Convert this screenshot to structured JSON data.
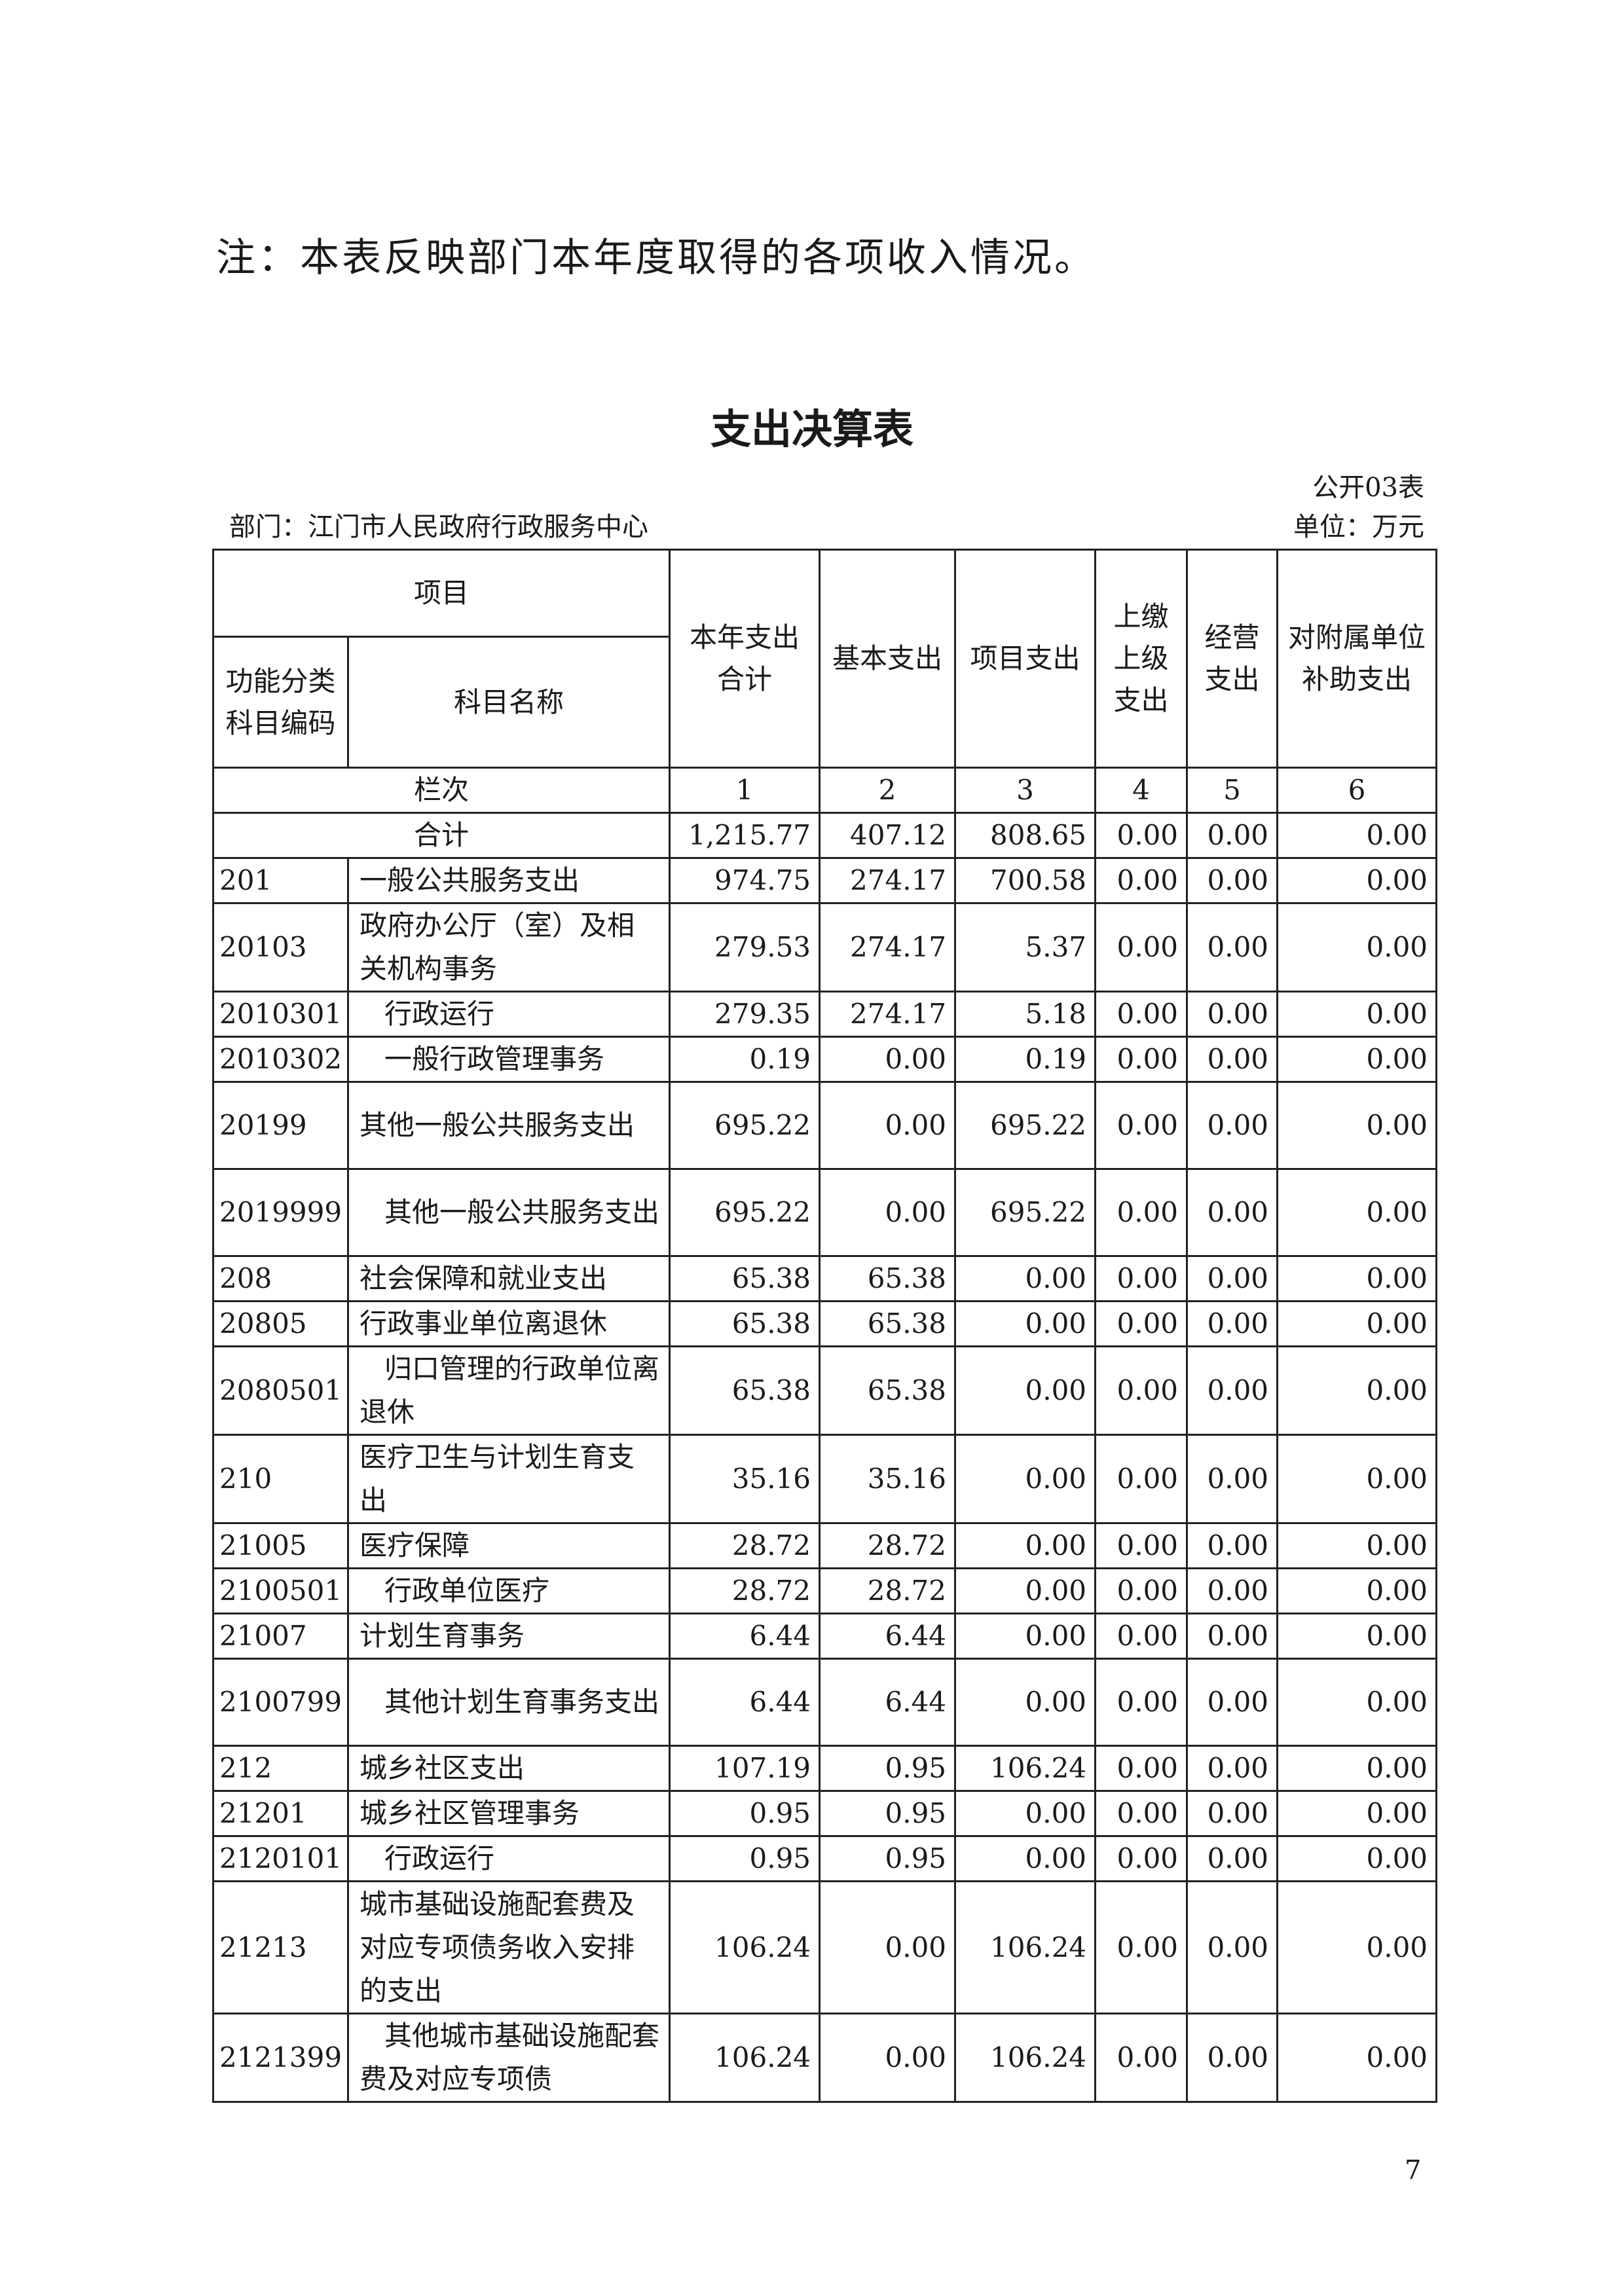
{
  "note": "注：本表反映部门本年度取得的各项收入情况。",
  "title": "支出决算表",
  "table_no": "公开03表",
  "department": "部门：江门市人民政府行政服务中心",
  "unit": "单位：万元",
  "header": {
    "project": "项目",
    "code": "功能分类科目编码",
    "name": "科目名称",
    "columns": [
      "本年支出合计",
      "基本支出",
      "项目支出",
      "上缴上级支出",
      "经营支出",
      "对附属单位补助支出"
    ],
    "index_label": "栏次",
    "index": [
      "1",
      "2",
      "3",
      "4",
      "5",
      "6"
    ]
  },
  "total": {
    "label": "合计",
    "values": [
      "1,215.77",
      "407.12",
      "808.65",
      "0.00",
      "0.00",
      "0.00"
    ]
  },
  "rows": [
    {
      "code": "201",
      "name": "一般公共服务支出",
      "values": [
        "974.75",
        "274.17",
        "700.58",
        "0.00",
        "0.00",
        "0.00"
      ]
    },
    {
      "code": "20103",
      "name": "政府办公厅（室）及相关机构事务",
      "values": [
        "279.53",
        "274.17",
        "5.37",
        "0.00",
        "0.00",
        "0.00"
      ]
    },
    {
      "code": "2010301",
      "name": "行政运行",
      "values": [
        "279.35",
        "274.17",
        "5.18",
        "0.00",
        "0.00",
        "0.00"
      ]
    },
    {
      "code": "2010302",
      "name": "一般行政管理事务",
      "values": [
        "0.19",
        "0.00",
        "0.19",
        "0.00",
        "0.00",
        "0.00"
      ]
    },
    {
      "code": "20199",
      "name": "其他一般公共服务支出",
      "values": [
        "695.22",
        "0.00",
        "695.22",
        "0.00",
        "0.00",
        "0.00"
      ]
    },
    {
      "code": "2019999",
      "name": "其他一般公共服务支出",
      "values": [
        "695.22",
        "0.00",
        "695.22",
        "0.00",
        "0.00",
        "0.00"
      ]
    },
    {
      "code": "208",
      "name": "社会保障和就业支出",
      "values": [
        "65.38",
        "65.38",
        "0.00",
        "0.00",
        "0.00",
        "0.00"
      ]
    },
    {
      "code": "20805",
      "name": "行政事业单位离退休",
      "values": [
        "65.38",
        "65.38",
        "0.00",
        "0.00",
        "0.00",
        "0.00"
      ]
    },
    {
      "code": "2080501",
      "name": "归口管理的行政单位离退休",
      "values": [
        "65.38",
        "65.38",
        "0.00",
        "0.00",
        "0.00",
        "0.00"
      ]
    },
    {
      "code": "210",
      "name": "医疗卫生与计划生育支出",
      "values": [
        "35.16",
        "35.16",
        "0.00",
        "0.00",
        "0.00",
        "0.00"
      ]
    },
    {
      "code": "21005",
      "name": "医疗保障",
      "values": [
        "28.72",
        "28.72",
        "0.00",
        "0.00",
        "0.00",
        "0.00"
      ]
    },
    {
      "code": "2100501",
      "name": "行政单位医疗",
      "values": [
        "28.72",
        "28.72",
        "0.00",
        "0.00",
        "0.00",
        "0.00"
      ]
    },
    {
      "code": "21007",
      "name": "计划生育事务",
      "values": [
        "6.44",
        "6.44",
        "0.00",
        "0.00",
        "0.00",
        "0.00"
      ]
    },
    {
      "code": "2100799",
      "name": "其他计划生育事务支出",
      "values": [
        "6.44",
        "6.44",
        "0.00",
        "0.00",
        "0.00",
        "0.00"
      ]
    },
    {
      "code": "212",
      "name": "城乡社区支出",
      "values": [
        "107.19",
        "0.95",
        "106.24",
        "0.00",
        "0.00",
        "0.00"
      ]
    },
    {
      "code": "21201",
      "name": "城乡社区管理事务",
      "values": [
        "0.95",
        "0.95",
        "0.00",
        "0.00",
        "0.00",
        "0.00"
      ]
    },
    {
      "code": "2120101",
      "name": "行政运行",
      "values": [
        "0.95",
        "0.95",
        "0.00",
        "0.00",
        "0.00",
        "0.00"
      ]
    },
    {
      "code": "21213",
      "name": "城市基础设施配套费及对应专项债务收入安排的支出",
      "values": [
        "106.24",
        "0.00",
        "106.24",
        "0.00",
        "0.00",
        "0.00"
      ]
    },
    {
      "code": "2121399",
      "name": "其他城市基础设施配套费及对应专项债",
      "values": [
        "106.24",
        "0.00",
        "106.24",
        "0.00",
        "0.00",
        "0.00"
      ]
    }
  ],
  "page_number": "7"
}
